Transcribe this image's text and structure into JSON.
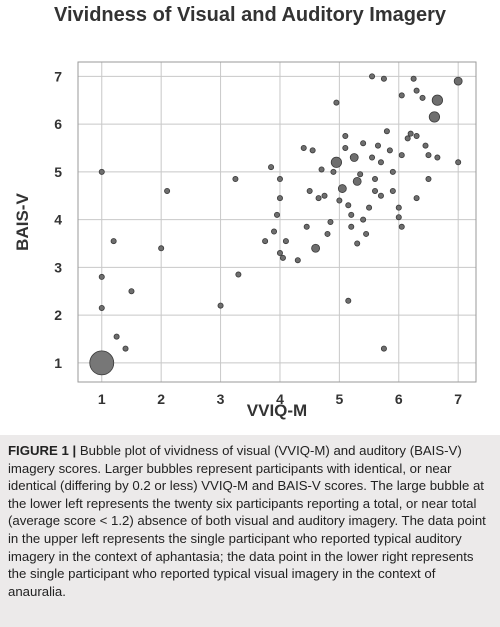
{
  "chart_data": {
    "type": "scatter",
    "title": "Vividness of Visual and Auditory Imagery",
    "xlabel": "VVIQ-M",
    "ylabel": "BAIS-V",
    "xlim": [
      0.6,
      7.3
    ],
    "ylim": [
      0.6,
      7.3
    ],
    "xticks": [
      1,
      2,
      3,
      4,
      5,
      6,
      7
    ],
    "yticks": [
      1,
      2,
      3,
      4,
      5,
      6,
      7
    ],
    "grid": true,
    "points": [
      {
        "x": 1.0,
        "y": 1.0,
        "size": 26
      },
      {
        "x": 1.0,
        "y": 5.0,
        "size": 1
      },
      {
        "x": 1.0,
        "y": 2.8,
        "size": 1
      },
      {
        "x": 1.0,
        "y": 2.15,
        "size": 1
      },
      {
        "x": 1.2,
        "y": 3.55,
        "size": 1
      },
      {
        "x": 1.5,
        "y": 2.5,
        "size": 1
      },
      {
        "x": 1.25,
        "y": 1.55,
        "size": 1
      },
      {
        "x": 1.4,
        "y": 1.3,
        "size": 1
      },
      {
        "x": 2.0,
        "y": 3.4,
        "size": 1
      },
      {
        "x": 2.1,
        "y": 4.6,
        "size": 1
      },
      {
        "x": 3.0,
        "y": 2.2,
        "size": 1
      },
      {
        "x": 3.25,
        "y": 4.85,
        "size": 1
      },
      {
        "x": 3.3,
        "y": 2.85,
        "size": 1
      },
      {
        "x": 3.75,
        "y": 3.55,
        "size": 1
      },
      {
        "x": 3.85,
        "y": 5.1,
        "size": 1
      },
      {
        "x": 3.9,
        "y": 3.75,
        "size": 1
      },
      {
        "x": 3.95,
        "y": 4.1,
        "size": 1
      },
      {
        "x": 4.0,
        "y": 4.85,
        "size": 1
      },
      {
        "x": 4.0,
        "y": 4.45,
        "size": 1
      },
      {
        "x": 4.0,
        "y": 3.3,
        "size": 1
      },
      {
        "x": 4.05,
        "y": 3.2,
        "size": 1
      },
      {
        "x": 4.1,
        "y": 3.55,
        "size": 1
      },
      {
        "x": 4.3,
        "y": 3.15,
        "size": 1
      },
      {
        "x": 4.4,
        "y": 5.5,
        "size": 1
      },
      {
        "x": 4.45,
        "y": 3.85,
        "size": 1
      },
      {
        "x": 4.5,
        "y": 4.6,
        "size": 1
      },
      {
        "x": 4.55,
        "y": 5.45,
        "size": 1
      },
      {
        "x": 4.6,
        "y": 3.4,
        "size": 2
      },
      {
        "x": 4.65,
        "y": 4.45,
        "size": 1
      },
      {
        "x": 4.7,
        "y": 5.05,
        "size": 1
      },
      {
        "x": 4.75,
        "y": 4.5,
        "size": 1
      },
      {
        "x": 4.8,
        "y": 3.7,
        "size": 1
      },
      {
        "x": 4.85,
        "y": 3.95,
        "size": 1
      },
      {
        "x": 4.9,
        "y": 5.0,
        "size": 1
      },
      {
        "x": 4.95,
        "y": 5.2,
        "size": 3
      },
      {
        "x": 4.95,
        "y": 6.45,
        "size": 1
      },
      {
        "x": 5.0,
        "y": 4.4,
        "size": 1
      },
      {
        "x": 5.05,
        "y": 4.65,
        "size": 2
      },
      {
        "x": 5.1,
        "y": 5.75,
        "size": 1
      },
      {
        "x": 5.1,
        "y": 5.5,
        "size": 1
      },
      {
        "x": 5.15,
        "y": 4.3,
        "size": 1
      },
      {
        "x": 5.15,
        "y": 2.3,
        "size": 1
      },
      {
        "x": 5.2,
        "y": 4.1,
        "size": 1
      },
      {
        "x": 5.2,
        "y": 3.85,
        "size": 1
      },
      {
        "x": 5.25,
        "y": 5.3,
        "size": 2
      },
      {
        "x": 5.3,
        "y": 4.8,
        "size": 2
      },
      {
        "x": 5.3,
        "y": 3.5,
        "size": 1
      },
      {
        "x": 5.35,
        "y": 4.95,
        "size": 1
      },
      {
        "x": 5.4,
        "y": 5.6,
        "size": 1
      },
      {
        "x": 5.4,
        "y": 4.0,
        "size": 1
      },
      {
        "x": 5.45,
        "y": 3.7,
        "size": 1
      },
      {
        "x": 5.5,
        "y": 4.25,
        "size": 1
      },
      {
        "x": 5.55,
        "y": 5.3,
        "size": 1
      },
      {
        "x": 5.55,
        "y": 7.0,
        "size": 1
      },
      {
        "x": 5.6,
        "y": 4.6,
        "size": 1
      },
      {
        "x": 5.6,
        "y": 4.85,
        "size": 1
      },
      {
        "x": 5.65,
        "y": 5.55,
        "size": 1
      },
      {
        "x": 5.7,
        "y": 5.2,
        "size": 1
      },
      {
        "x": 5.7,
        "y": 4.5,
        "size": 1
      },
      {
        "x": 5.75,
        "y": 1.3,
        "size": 1
      },
      {
        "x": 5.75,
        "y": 6.95,
        "size": 1
      },
      {
        "x": 5.8,
        "y": 5.85,
        "size": 1
      },
      {
        "x": 5.85,
        "y": 5.45,
        "size": 1
      },
      {
        "x": 5.9,
        "y": 5.0,
        "size": 1
      },
      {
        "x": 5.9,
        "y": 4.6,
        "size": 1
      },
      {
        "x": 6.0,
        "y": 4.25,
        "size": 1
      },
      {
        "x": 6.0,
        "y": 4.05,
        "size": 1
      },
      {
        "x": 6.05,
        "y": 3.85,
        "size": 1
      },
      {
        "x": 6.05,
        "y": 5.35,
        "size": 1
      },
      {
        "x": 6.05,
        "y": 6.6,
        "size": 1
      },
      {
        "x": 6.15,
        "y": 5.7,
        "size": 1
      },
      {
        "x": 6.2,
        "y": 5.8,
        "size": 1
      },
      {
        "x": 6.25,
        "y": 6.95,
        "size": 1
      },
      {
        "x": 6.3,
        "y": 6.7,
        "size": 1
      },
      {
        "x": 6.3,
        "y": 5.75,
        "size": 1
      },
      {
        "x": 6.3,
        "y": 4.45,
        "size": 1
      },
      {
        "x": 6.4,
        "y": 6.55,
        "size": 1
      },
      {
        "x": 6.45,
        "y": 5.55,
        "size": 1
      },
      {
        "x": 6.5,
        "y": 5.35,
        "size": 1
      },
      {
        "x": 6.5,
        "y": 4.85,
        "size": 1
      },
      {
        "x": 6.6,
        "y": 6.15,
        "size": 3
      },
      {
        "x": 6.65,
        "y": 6.5,
        "size": 3
      },
      {
        "x": 6.65,
        "y": 5.3,
        "size": 1
      },
      {
        "x": 7.0,
        "y": 6.9,
        "size": 2
      },
      {
        "x": 7.0,
        "y": 5.2,
        "size": 1
      }
    ]
  },
  "caption": {
    "label": "FIGURE 1 |",
    "text": " Bubble plot of vividness of visual (VVIQ-M) and auditory (BAIS-V) imagery scores. Larger bubbles represent participants with identical, or near identical (differing by 0.2 or less) VVIQ-M and BAIS-V scores. The large bubble at the lower left represents the twenty six participants reporting a total, or near total (average score < 1.2) absence of both visual and auditory imagery. The data point in the upper left represents the single participant who reported typical auditory imagery in the context of aphantasia; the data point in the lower right represents the single participant who reported typical visual imagery in the context of anauralia."
  }
}
